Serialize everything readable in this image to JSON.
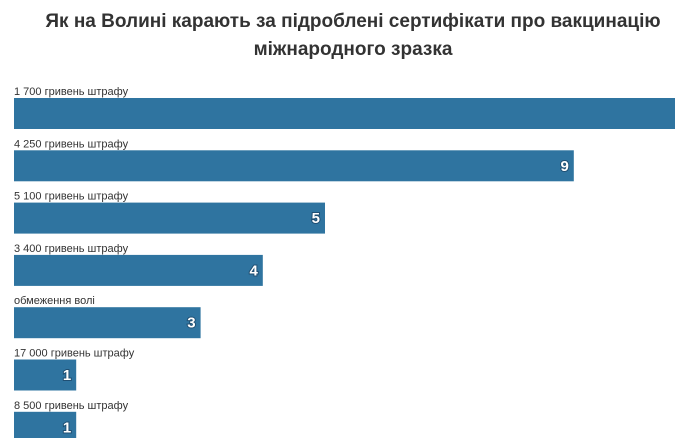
{
  "chart_data": {
    "type": "bar",
    "orientation": "horizontal",
    "title": "Як на Волині карають за підроблені сертифікати про вакцинацію міжнародного зразка",
    "title_lines": [
      "Як на Волині карають за підроблені сертифікати про вакцинацію",
      "міжнародного зразка"
    ],
    "categories": [
      "1 700 гривень штрафу",
      "4 250 гривень штрафу",
      "5 100 гривень штрафу",
      "3 400 гривень штрафу",
      "обмеження волі",
      "17 000 гривень штрафу",
      "8 500 гривень штрафу"
    ],
    "values": [
      null,
      9,
      5,
      4,
      3,
      1,
      1
    ],
    "value_labels": [
      "",
      "9",
      "5",
      "4",
      "3",
      "1",
      "1"
    ],
    "bar_color": "#2f74a0",
    "grid": false
  }
}
